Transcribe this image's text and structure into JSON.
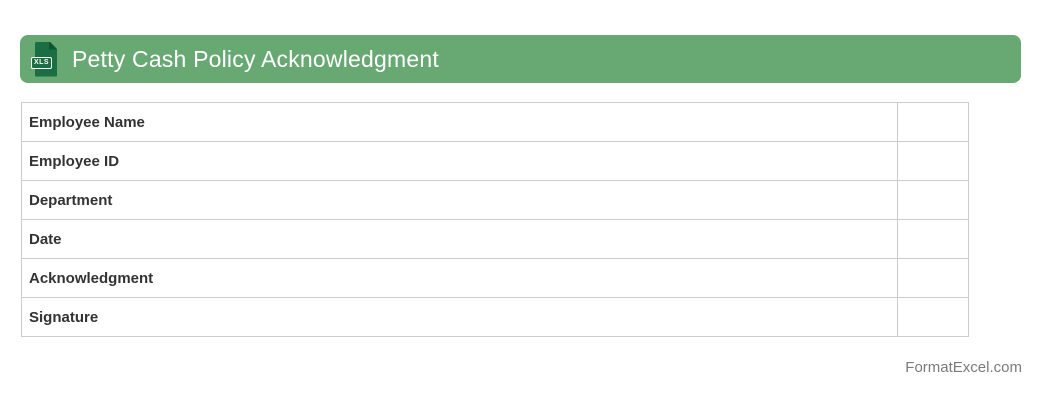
{
  "header": {
    "title": "Petty Cash Policy Acknowledgment",
    "file_badge": "XLS",
    "colors": {
      "banner_green": "#67a873",
      "icon_green": "#1a6e41",
      "icon_fold_green": "#0f5531"
    }
  },
  "form_table": {
    "rows": [
      {
        "label": "Employee Name",
        "value": ""
      },
      {
        "label": "Employee ID",
        "value": ""
      },
      {
        "label": "Department",
        "value": ""
      },
      {
        "label": "Date",
        "value": ""
      },
      {
        "label": "Acknowledgment",
        "value": ""
      },
      {
        "label": "Signature",
        "value": ""
      }
    ]
  },
  "footer": {
    "site_credit": "FormatExcel.com"
  }
}
